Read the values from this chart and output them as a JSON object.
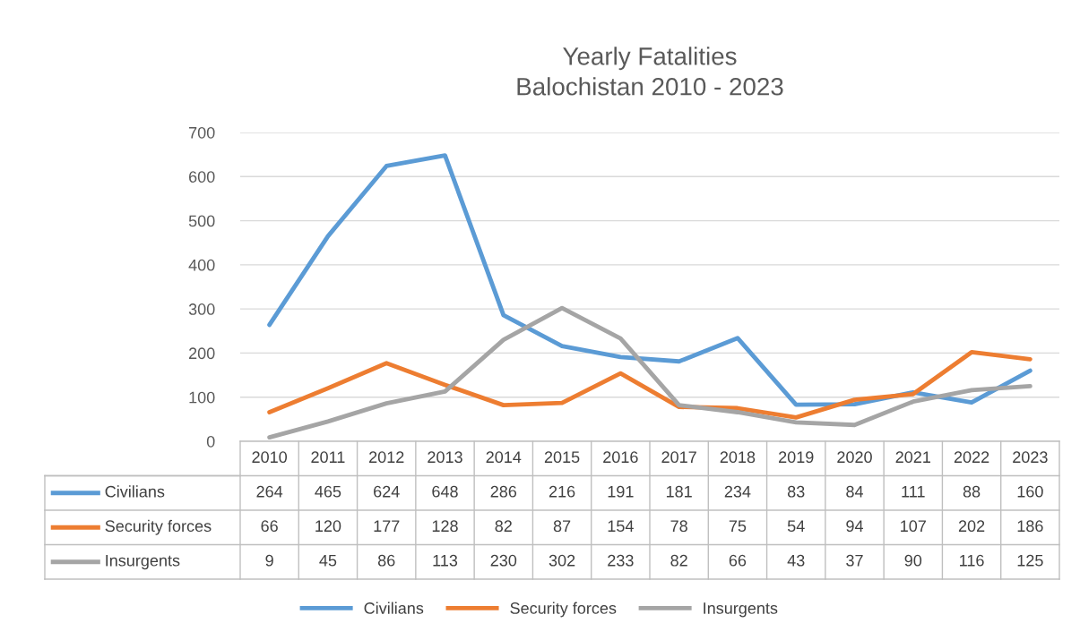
{
  "chart_data": {
    "type": "line",
    "title": "Yearly Fatalities\nBalochistan 2010 - 2023",
    "categories": [
      "2010",
      "2011",
      "2012",
      "2013",
      "2014",
      "2015",
      "2016",
      "2017",
      "2018",
      "2019",
      "2020",
      "2021",
      "2022",
      "2023"
    ],
    "series": [
      {
        "name": "Civilians",
        "color": "#5b9bd5",
        "values": [
          264,
          465,
          624,
          648,
          286,
          216,
          191,
          181,
          234,
          83,
          84,
          111,
          88,
          160
        ]
      },
      {
        "name": "Security forces",
        "color": "#ed7d31",
        "values": [
          66,
          120,
          177,
          128,
          82,
          87,
          154,
          78,
          75,
          54,
          94,
          107,
          202,
          186
        ]
      },
      {
        "name": "Insurgents",
        "color": "#a5a5a5",
        "values": [
          9,
          45,
          86,
          113,
          230,
          302,
          233,
          82,
          66,
          43,
          37,
          90,
          116,
          125
        ]
      }
    ],
    "ylim": [
      0,
      700
    ],
    "yticks": [
      0,
      100,
      200,
      300,
      400,
      500,
      600,
      700
    ],
    "grid": "y",
    "legend": "bottom",
    "data_labels": true,
    "marker": "none",
    "line_style": "solid"
  }
}
